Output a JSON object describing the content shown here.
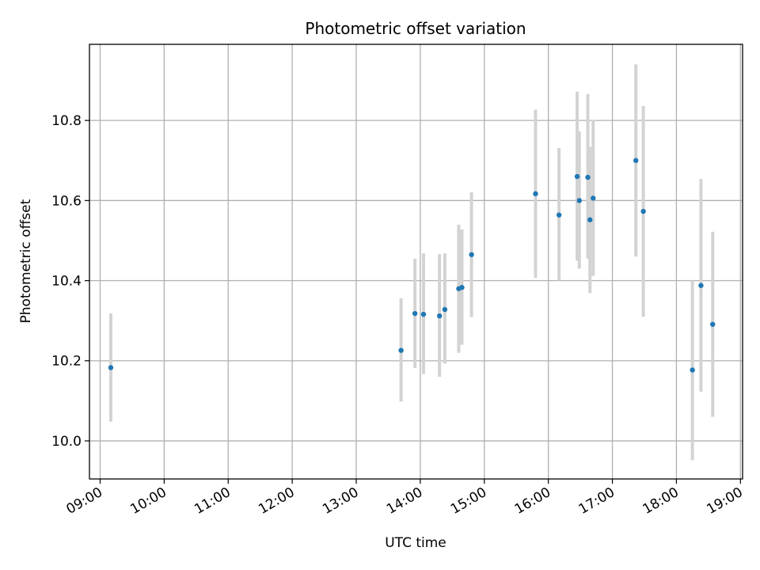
{
  "chart_data": {
    "type": "scatter",
    "title": "Photometric offset variation",
    "xlabel": "UTC time",
    "ylabel": "Photometric offset",
    "grid": true,
    "xlim": [
      "08:50",
      "19:02"
    ],
    "ylim": [
      9.905,
      10.99
    ],
    "x_ticks": [
      "09:00",
      "10:00",
      "11:00",
      "12:00",
      "13:00",
      "14:00",
      "15:00",
      "16:00",
      "17:00",
      "18:00",
      "19:00"
    ],
    "y_ticks": [
      "10.0",
      "10.2",
      "10.4",
      "10.6",
      "10.8"
    ],
    "point_color": "#1f77b4",
    "errorbar_color": "#d3d3d3",
    "series": [
      {
        "points": [
          {
            "x": "09:10",
            "y": 10.183,
            "ylo": 10.048,
            "yhi": 10.318
          },
          {
            "x": "13:42",
            "y": 10.226,
            "ylo": 10.098,
            "yhi": 10.356
          },
          {
            "x": "13:55",
            "y": 10.318,
            "ylo": 10.182,
            "yhi": 10.455
          },
          {
            "x": "14:03",
            "y": 10.316,
            "ylo": 10.167,
            "yhi": 10.468
          },
          {
            "x": "14:18",
            "y": 10.312,
            "ylo": 10.16,
            "yhi": 10.466
          },
          {
            "x": "14:23",
            "y": 10.328,
            "ylo": 10.193,
            "yhi": 10.468
          },
          {
            "x": "14:36",
            "y": 10.38,
            "ylo": 10.22,
            "yhi": 10.54
          },
          {
            "x": "14:39",
            "y": 10.383,
            "ylo": 10.24,
            "yhi": 10.528
          },
          {
            "x": "14:48",
            "y": 10.465,
            "ylo": 10.309,
            "yhi": 10.621
          },
          {
            "x": "15:48",
            "y": 10.617,
            "ylo": 10.407,
            "yhi": 10.827
          },
          {
            "x": "16:10",
            "y": 10.564,
            "ylo": 10.4,
            "yhi": 10.731
          },
          {
            "x": "16:27",
            "y": 10.66,
            "ylo": 10.45,
            "yhi": 10.872
          },
          {
            "x": "16:29",
            "y": 10.6,
            "ylo": 10.43,
            "yhi": 10.773
          },
          {
            "x": "16:37",
            "y": 10.658,
            "ylo": 10.455,
            "yhi": 10.866
          },
          {
            "x": "16:39",
            "y": 10.552,
            "ylo": 10.369,
            "yhi": 10.734
          },
          {
            "x": "16:42",
            "y": 10.606,
            "ylo": 10.412,
            "yhi": 10.801
          },
          {
            "x": "17:22",
            "y": 10.7,
            "ylo": 10.46,
            "yhi": 10.94
          },
          {
            "x": "17:29",
            "y": 10.573,
            "ylo": 10.31,
            "yhi": 10.836
          },
          {
            "x": "18:15",
            "y": 10.177,
            "ylo": 9.952,
            "yhi": 10.4
          },
          {
            "x": "18:23",
            "y": 10.388,
            "ylo": 10.123,
            "yhi": 10.654
          },
          {
            "x": "18:34",
            "y": 10.291,
            "ylo": 10.06,
            "yhi": 10.522
          }
        ]
      }
    ]
  }
}
